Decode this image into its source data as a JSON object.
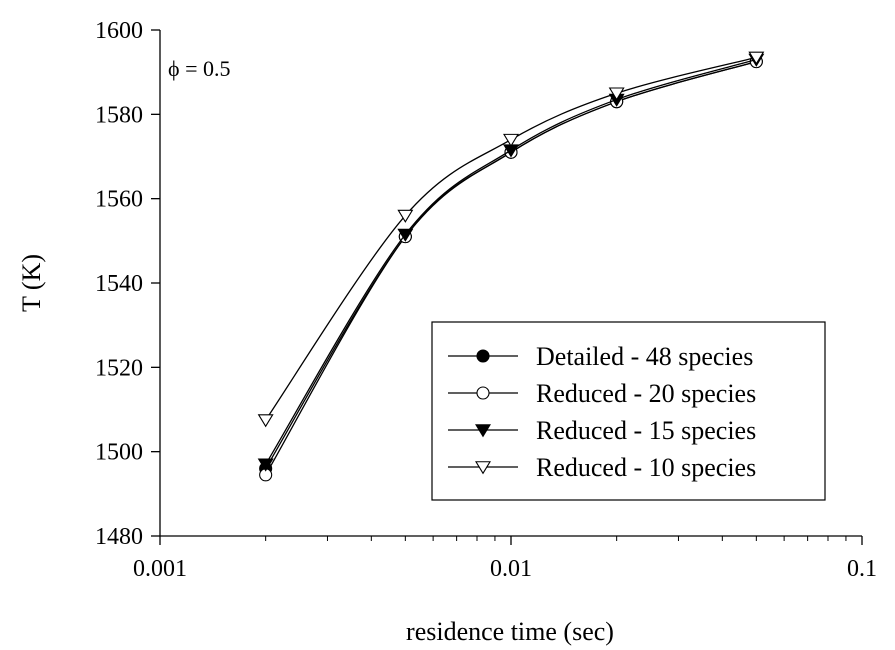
{
  "chart_data": {
    "type": "line",
    "title": "",
    "xlabel": "residence time (sec)",
    "ylabel": "T (K)",
    "x_scale": "log",
    "xlim": [
      0.001,
      0.1
    ],
    "ylim": [
      1480,
      1600
    ],
    "x_ticks": [
      0.001,
      0.01,
      0.1
    ],
    "x_tick_labels": [
      "0.001",
      "0.01",
      "0.1"
    ],
    "y_ticks": [
      1480,
      1500,
      1520,
      1540,
      1560,
      1580,
      1600
    ],
    "y_tick_labels": [
      "1480",
      "1500",
      "1520",
      "1540",
      "1560",
      "1580",
      "1600"
    ],
    "grid": false,
    "legend_position": "lower-right",
    "annotation": "ϕ = 0.5",
    "x": [
      0.002,
      0.005,
      0.01,
      0.02,
      0.05
    ],
    "series": [
      {
        "name": "Detailed - 48 species",
        "marker": "circle-filled",
        "values": [
          1496,
          1551,
          1571,
          1583,
          1592.5
        ]
      },
      {
        "name": "Reduced - 20 species",
        "marker": "circle-open",
        "values": [
          1494.5,
          1551,
          1571,
          1583,
          1592.5
        ]
      },
      {
        "name": "Reduced - 15 species",
        "marker": "triangle-down-filled",
        "values": [
          1497,
          1551.5,
          1571.5,
          1583.5,
          1593
        ]
      },
      {
        "name": "Reduced - 10 species",
        "marker": "triangle-down-open",
        "values": [
          1507.5,
          1556,
          1574,
          1585,
          1593.5
        ]
      }
    ]
  }
}
